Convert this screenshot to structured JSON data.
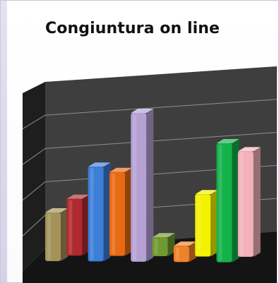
{
  "colors": {
    "background": "#ffffff",
    "frame_border": "#c9c5dc",
    "chart_back_wall": "#3e3e3e",
    "chart_side_wall": "#1e1e1e",
    "chart_floor": "#141414",
    "gridline": "#8f8f8f"
  },
  "chart_data": {
    "type": "bar",
    "title": "Congiuntura on line",
    "bars": [
      {
        "value": 18,
        "color": "#a3925a"
      },
      {
        "value": 21,
        "color": "#b02a2f"
      },
      {
        "value": 35,
        "color": "#3c7ed8"
      },
      {
        "value": 31,
        "color": "#e86a13"
      },
      {
        "value": 55,
        "color": "#b5a0d4"
      },
      {
        "value": 7,
        "color": "#6e9a2f"
      },
      {
        "value": 6,
        "color": "#ee8228"
      },
      {
        "value": 23,
        "color": "#f3f000"
      },
      {
        "value": 44,
        "color": "#13b24a"
      },
      {
        "value": 39,
        "color": "#f2b1bb"
      }
    ],
    "ylim": [
      0,
      60
    ],
    "grid": true,
    "legend": "none"
  }
}
